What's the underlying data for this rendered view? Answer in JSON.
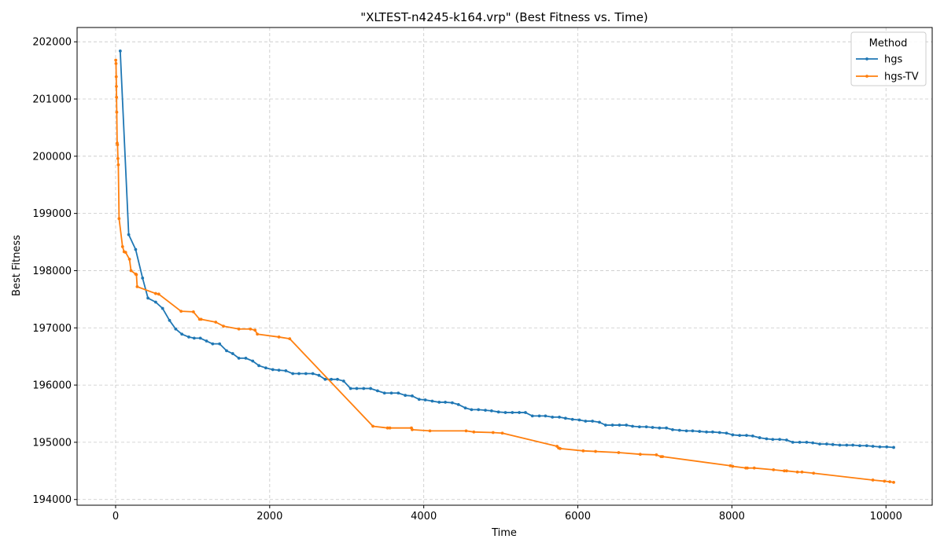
{
  "chart_data": {
    "type": "line",
    "title": "\"XLTEST-n4245-k164.vrp\" (Best Fitness vs. Time)",
    "xlabel": "Time",
    "ylabel": "Best Fitness",
    "xlim": [
      -500,
      10600
    ],
    "ylim": [
      193900,
      202250
    ],
    "xticks": [
      0,
      2000,
      4000,
      6000,
      8000,
      10000
    ],
    "yticks": [
      194000,
      195000,
      196000,
      197000,
      198000,
      199000,
      200000,
      201000,
      202000
    ],
    "grid": true,
    "legend": {
      "title": "Method",
      "placement": "top-right"
    },
    "series": [
      {
        "name": "hgs",
        "color": "#1f77b4",
        "points": [
          [
            60,
            201840
          ],
          [
            170,
            198630
          ],
          [
            260,
            198370
          ],
          [
            350,
            197870
          ],
          [
            420,
            197520
          ],
          [
            520,
            197450
          ],
          [
            610,
            197340
          ],
          [
            700,
            197130
          ],
          [
            780,
            196980
          ],
          [
            860,
            196890
          ],
          [
            950,
            196840
          ],
          [
            1020,
            196820
          ],
          [
            1100,
            196820
          ],
          [
            1180,
            196770
          ],
          [
            1260,
            196720
          ],
          [
            1350,
            196720
          ],
          [
            1440,
            196600
          ],
          [
            1520,
            196550
          ],
          [
            1600,
            196470
          ],
          [
            1690,
            196470
          ],
          [
            1780,
            196420
          ],
          [
            1860,
            196340
          ],
          [
            1950,
            196300
          ],
          [
            2040,
            196270
          ],
          [
            2120,
            196260
          ],
          [
            2210,
            196250
          ],
          [
            2300,
            196200
          ],
          [
            2380,
            196200
          ],
          [
            2470,
            196200
          ],
          [
            2560,
            196200
          ],
          [
            2640,
            196170
          ],
          [
            2720,
            196100
          ],
          [
            2800,
            196100
          ],
          [
            2880,
            196100
          ],
          [
            2960,
            196070
          ],
          [
            3050,
            195940
          ],
          [
            3130,
            195940
          ],
          [
            3220,
            195940
          ],
          [
            3310,
            195940
          ],
          [
            3400,
            195900
          ],
          [
            3490,
            195860
          ],
          [
            3580,
            195860
          ],
          [
            3670,
            195860
          ],
          [
            3760,
            195820
          ],
          [
            3850,
            195810
          ],
          [
            3940,
            195750
          ],
          [
            4020,
            195740
          ],
          [
            4110,
            195720
          ],
          [
            4200,
            195700
          ],
          [
            4280,
            195700
          ],
          [
            4370,
            195690
          ],
          [
            4450,
            195660
          ],
          [
            4540,
            195600
          ],
          [
            4620,
            195570
          ],
          [
            4710,
            195570
          ],
          [
            4800,
            195560
          ],
          [
            4880,
            195550
          ],
          [
            4970,
            195530
          ],
          [
            5060,
            195520
          ],
          [
            5150,
            195520
          ],
          [
            5240,
            195520
          ],
          [
            5320,
            195520
          ],
          [
            5410,
            195460
          ],
          [
            5500,
            195460
          ],
          [
            5580,
            195460
          ],
          [
            5670,
            195440
          ],
          [
            5760,
            195440
          ],
          [
            5840,
            195420
          ],
          [
            5930,
            195400
          ],
          [
            6020,
            195390
          ],
          [
            6100,
            195370
          ],
          [
            6190,
            195370
          ],
          [
            6280,
            195350
          ],
          [
            6360,
            195300
          ],
          [
            6450,
            195300
          ],
          [
            6540,
            195300
          ],
          [
            6630,
            195300
          ],
          [
            6710,
            195280
          ],
          [
            6800,
            195270
          ],
          [
            6890,
            195270
          ],
          [
            6970,
            195260
          ],
          [
            7060,
            195250
          ],
          [
            7150,
            195250
          ],
          [
            7230,
            195220
          ],
          [
            7320,
            195210
          ],
          [
            7410,
            195200
          ],
          [
            7490,
            195200
          ],
          [
            7580,
            195190
          ],
          [
            7670,
            195180
          ],
          [
            7750,
            195180
          ],
          [
            7840,
            195170
          ],
          [
            7930,
            195160
          ],
          [
            8010,
            195130
          ],
          [
            8100,
            195120
          ],
          [
            8190,
            195120
          ],
          [
            8270,
            195110
          ],
          [
            8360,
            195080
          ],
          [
            8450,
            195060
          ],
          [
            8530,
            195050
          ],
          [
            8620,
            195050
          ],
          [
            8710,
            195040
          ],
          [
            8790,
            195000
          ],
          [
            8880,
            195000
          ],
          [
            8970,
            195000
          ],
          [
            9050,
            194990
          ],
          [
            9140,
            194970
          ],
          [
            9230,
            194970
          ],
          [
            9310,
            194960
          ],
          [
            9400,
            194950
          ],
          [
            9490,
            194950
          ],
          [
            9570,
            194950
          ],
          [
            9660,
            194940
          ],
          [
            9750,
            194940
          ],
          [
            9830,
            194930
          ],
          [
            9920,
            194920
          ],
          [
            10010,
            194920
          ],
          [
            10100,
            194910
          ]
        ]
      },
      {
        "name": "hgs-TV",
        "color": "#ff7f0e",
        "points": [
          [
            2,
            201680
          ],
          [
            5,
            201620
          ],
          [
            8,
            201390
          ],
          [
            10,
            201220
          ],
          [
            12,
            201030
          ],
          [
            15,
            200770
          ],
          [
            20,
            200230
          ],
          [
            25,
            200200
          ],
          [
            30,
            199960
          ],
          [
            35,
            199850
          ],
          [
            45,
            198910
          ],
          [
            90,
            198420
          ],
          [
            110,
            198330
          ],
          [
            130,
            198320
          ],
          [
            180,
            198200
          ],
          [
            200,
            198000
          ],
          [
            260,
            197940
          ],
          [
            270,
            197930
          ],
          [
            280,
            197720
          ],
          [
            520,
            197600
          ],
          [
            560,
            197590
          ],
          [
            850,
            197290
          ],
          [
            1010,
            197280
          ],
          [
            1090,
            197150
          ],
          [
            1110,
            197150
          ],
          [
            1300,
            197100
          ],
          [
            1400,
            197030
          ],
          [
            1600,
            196980
          ],
          [
            1750,
            196980
          ],
          [
            1810,
            196960
          ],
          [
            1840,
            196890
          ],
          [
            2120,
            196840
          ],
          [
            2260,
            196810
          ],
          [
            3340,
            195280
          ],
          [
            3530,
            195250
          ],
          [
            3560,
            195250
          ],
          [
            3840,
            195250
          ],
          [
            3850,
            195220
          ],
          [
            4080,
            195200
          ],
          [
            4550,
            195200
          ],
          [
            4650,
            195180
          ],
          [
            4900,
            195170
          ],
          [
            5020,
            195160
          ],
          [
            5730,
            194930
          ],
          [
            5750,
            194900
          ],
          [
            5770,
            194890
          ],
          [
            6070,
            194850
          ],
          [
            6230,
            194840
          ],
          [
            6530,
            194820
          ],
          [
            6810,
            194790
          ],
          [
            7020,
            194780
          ],
          [
            7080,
            194750
          ],
          [
            7100,
            194750
          ],
          [
            7980,
            194590
          ],
          [
            8010,
            194580
          ],
          [
            8180,
            194550
          ],
          [
            8200,
            194550
          ],
          [
            8290,
            194550
          ],
          [
            8540,
            194520
          ],
          [
            8680,
            194500
          ],
          [
            8710,
            194500
          ],
          [
            8850,
            194480
          ],
          [
            8910,
            194480
          ],
          [
            9060,
            194460
          ],
          [
            9830,
            194340
          ],
          [
            9980,
            194320
          ],
          [
            10050,
            194310
          ],
          [
            10100,
            194300
          ]
        ]
      }
    ]
  }
}
